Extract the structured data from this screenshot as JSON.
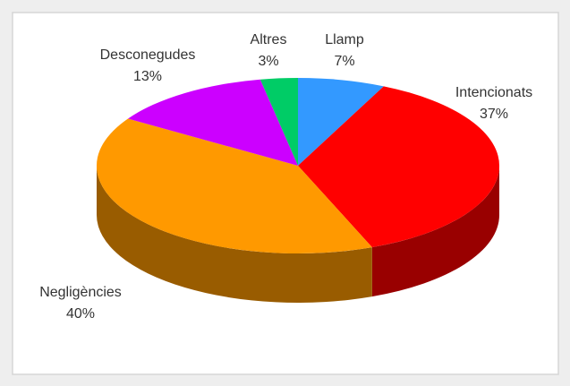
{
  "chart_data": {
    "type": "pie",
    "categories": [
      "Llamp",
      "Intencionats",
      "Negligències",
      "Desconegudes",
      "Altres"
    ],
    "values": [
      7,
      37,
      40,
      13,
      3
    ],
    "value_labels": [
      "7%",
      "37%",
      "40%",
      "13%",
      "3%"
    ],
    "colors": [
      "#3399ff",
      "#ff0000",
      "#ff9900",
      "#cc00ff",
      "#00cc66"
    ]
  }
}
